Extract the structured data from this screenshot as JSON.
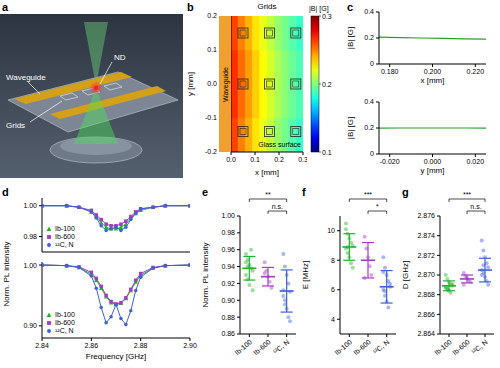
{
  "illustration": {
    "panel": "a",
    "labels": {
      "nd": "ND",
      "waveguide": "Waveguide",
      "grids": "Grids"
    }
  },
  "chart_data": [
    {
      "panel": "b",
      "type": "heatmap",
      "x_label": "x [mm]",
      "y_label": "y [mm]",
      "xlim": [
        0,
        0.3
      ],
      "xticks": [
        {
          "value": 0,
          "label": "0.0"
        },
        0.1,
        0.2,
        0.3
      ],
      "ylim": [
        -0.2,
        0.2
      ],
      "yticks": [
        -0.2,
        -0.1,
        {
          "value": 0,
          "label": "0.0"
        },
        0.1,
        0.2
      ],
      "x": [
        0.015,
        0.045,
        0.075,
        0.105,
        0.135,
        0.165,
        0.195,
        0.225,
        0.255,
        0.285
      ],
      "y": [
        -0.15,
        -0.05,
        0.05,
        0.15
      ],
      "cells": [
        [
          0.262,
          0.25,
          0.24,
          0.23,
          0.221,
          0.213,
          0.205,
          0.198,
          0.192,
          0.186
        ],
        [
          0.266,
          0.254,
          0.244,
          0.234,
          0.225,
          0.217,
          0.209,
          0.202,
          0.196,
          0.19
        ],
        [
          0.266,
          0.254,
          0.244,
          0.234,
          0.225,
          0.217,
          0.209,
          0.202,
          0.196,
          0.19
        ],
        [
          0.262,
          0.25,
          0.24,
          0.23,
          0.221,
          0.213,
          0.205,
          0.198,
          0.192,
          0.186
        ]
      ],
      "colorbar": {
        "label": "|B| [G]",
        "range": [
          0.1,
          0.3
        ],
        "ticks": [
          0.1,
          0.2,
          0.3
        ]
      },
      "grids": {
        "x": [
          0.05,
          0.16,
          0.27
        ],
        "y": [
          -0.14,
          0,
          0.15
        ]
      },
      "annotations": {
        "waveguide": "Waveguide",
        "grids": "Grids",
        "surface": "Glass surface"
      }
    },
    {
      "panel": "c",
      "type": "line",
      "color": "#2ca02c",
      "subplots": [
        {
          "x_label": "x [mm]",
          "y_label": "|B| [G]",
          "x": [
            0.175,
            0.185,
            0.195,
            0.205,
            0.215,
            0.225
          ],
          "values": [
            0.206,
            0.203,
            0.2,
            0.197,
            0.194,
            0.191
          ],
          "xlim": [
            0.175,
            0.225
          ],
          "xticks": [
            {
              "value": 0.18,
              "label": "0.180"
            },
            {
              "value": 0.2,
              "label": "0.200"
            },
            {
              "value": 0.22,
              "label": "0.220"
            }
          ],
          "ylim": [
            0,
            0.4
          ],
          "yticks": [
            0,
            0.2,
            0.4
          ]
        },
        {
          "x_label": "y [mm]",
          "y_label": "|B| [G]",
          "x": [
            -0.025,
            -0.015,
            -0.005,
            0.005,
            0.015,
            0.025
          ],
          "values": [
            0.199,
            0.2,
            0.2,
            0.2,
            0.2,
            0.199
          ],
          "xlim": [
            -0.025,
            0.025
          ],
          "xticks": [
            {
              "value": -0.02,
              "label": "-0.020"
            },
            {
              "value": 0,
              "label": "0.000"
            },
            {
              "value": 0.02,
              "label": "0.020"
            }
          ],
          "ylim": [
            0,
            0.4
          ],
          "yticks": [
            0,
            0.2,
            0.4
          ]
        }
      ]
    },
    {
      "panel": "d",
      "type": "line",
      "x_label": "Frequency [GHz]",
      "y_label": "Norm. PL intensity",
      "legend": "lower left",
      "xlim": [
        2.84,
        2.9
      ],
      "xticks": [
        2.84,
        2.86,
        2.88,
        {
          "value": 2.9,
          "label": "2.90"
        }
      ],
      "x": [
        2.84,
        2.85,
        2.855,
        2.86,
        2.862,
        2.864,
        2.866,
        2.868,
        2.87,
        2.872,
        2.874,
        2.876,
        2.878,
        2.88,
        2.885,
        2.89,
        2.9
      ],
      "subplots": [
        {
          "tick_labels": "y",
          "ylim": [
            0.97,
            1.005
          ],
          "yticks": [
            0.98,
            {
              "value": 1,
              "label": "1.00"
            }
          ],
          "series": [
            {
              "name": "Ib-100",
              "color": "#22b22a",
              "marker": "triangle",
              "values": [
                1.0,
                1.0,
                0.999,
                0.996,
                0.993,
                0.989,
                0.986,
                0.985,
                0.985,
                0.986,
                0.988,
                0.992,
                0.995,
                0.997,
                0.999,
                1.0,
                1.0
              ]
            },
            {
              "name": "Ib-600",
              "color": "#a23cc4",
              "marker": "square",
              "values": [
                1.0,
                1.0,
                0.999,
                0.997,
                0.994,
                0.991,
                0.988,
                0.987,
                0.987,
                0.988,
                0.99,
                0.993,
                0.996,
                0.998,
                0.999,
                1.0,
                1.0
              ]
            },
            {
              "name": "¹²C, N",
              "color": "#3f5fd8",
              "marker": "circle",
              "values": [
                1.0,
                1.0,
                0.999,
                0.996,
                0.992,
                0.987,
                0.984,
                0.985,
                0.986,
                0.984,
                0.986,
                0.991,
                0.995,
                0.998,
                0.999,
                1.0,
                1.0
              ]
            }
          ]
        },
        {
          "ylim": [
            0.88,
            1.005
          ],
          "yticks": [
            {
              "value": 0.9,
              "label": "0.90"
            },
            {
              "value": 1,
              "label": "1.00"
            }
          ],
          "series": [
            {
              "name": "Ib-100",
              "color": "#22b22a",
              "marker": "triangle",
              "values": [
                1.0,
                0.999,
                0.996,
                0.985,
                0.975,
                0.962,
                0.948,
                0.938,
                0.935,
                0.937,
                0.945,
                0.958,
                0.972,
                0.983,
                0.995,
                0.999,
                1.0
              ]
            },
            {
              "name": "Ib-600",
              "color": "#a23cc4",
              "marker": "square",
              "values": [
                1.0,
                0.999,
                0.997,
                0.988,
                0.978,
                0.965,
                0.95,
                0.94,
                0.936,
                0.938,
                0.946,
                0.96,
                0.975,
                0.986,
                0.996,
                0.999,
                1.0
              ]
            },
            {
              "name": "¹²C, N",
              "color": "#3f5fd8",
              "marker": "circle",
              "values": [
                1.0,
                0.999,
                0.996,
                0.982,
                0.962,
                0.93,
                0.905,
                0.915,
                0.935,
                0.912,
                0.902,
                0.925,
                0.958,
                0.98,
                0.995,
                0.999,
                1.0
              ]
            }
          ]
        }
      ]
    },
    {
      "panel": "e",
      "type": "scatter",
      "y_label": "Norm. PL intensity",
      "categories": [
        "Ib-100",
        "Ib-600",
        "¹²C, N"
      ],
      "colors": [
        "#22b22a",
        "#a23cc4",
        "#3f5fd8"
      ],
      "ylim": [
        0.86,
        1.0
      ],
      "yticks": [
        0.86,
        0.88,
        {
          "value": 0.9,
          "label": "0.90"
        },
        0.92,
        0.94,
        0.96,
        0.98,
        {
          "value": 1,
          "label": "1.00"
        }
      ],
      "points": [
        [
          0.955,
          0.948,
          0.942,
          0.938,
          0.935,
          0.93,
          0.925,
          0.918,
          0.96,
          0.912,
          0.945,
          0.94
        ],
        [
          0.945,
          0.935,
          0.928,
          0.922,
          0.915,
          0.932
        ],
        [
          0.955,
          0.94,
          0.93,
          0.92,
          0.91,
          0.905,
          0.895,
          0.89,
          0.88,
          0.875,
          0.912,
          0.9
        ]
      ],
      "mean": [
        0.938,
        0.928,
        0.911
      ],
      "sd": [
        0.014,
        0.011,
        0.025
      ],
      "significance": [
        {
          "pair": [
            "Ib-100",
            "¹²C, N"
          ],
          "label": "**"
        },
        {
          "pair": [
            "Ib-600",
            "¹²C, N"
          ],
          "label": "n.s."
        }
      ]
    },
    {
      "panel": "f",
      "type": "scatter",
      "y_label": "E [MHz]",
      "categories": [
        "Ib-100",
        "Ib-600",
        "¹²C, N"
      ],
      "colors": [
        "#22b22a",
        "#a23cc4",
        "#3f5fd8"
      ],
      "ylim": [
        3,
        11
      ],
      "yticks": [
        4,
        6,
        8,
        10
      ],
      "points": [
        [
          10.5,
          9.8,
          9.5,
          9.2,
          9.0,
          8.8,
          8.5,
          8.2,
          7.8,
          7.5,
          10.1,
          8.9
        ],
        [
          9.6,
          8.8,
          8.2,
          7.6,
          7.0,
          6.8
        ],
        [
          8.2,
          7.5,
          7.0,
          6.6,
          6.2,
          6.0,
          5.6,
          5.2,
          4.8,
          6.4,
          7.2,
          5.9
        ]
      ],
      "mean": [
        8.9,
        8.0,
        6.2
      ],
      "sd": [
        0.9,
        1.2,
        1.1
      ],
      "significance": [
        {
          "pair": [
            "Ib-100",
            "¹²C, N"
          ],
          "label": "***"
        },
        {
          "pair": [
            "Ib-600",
            "¹²C, N"
          ],
          "label": "*"
        }
      ]
    },
    {
      "panel": "g",
      "type": "scatter",
      "y_label": "D [GHz]",
      "categories": [
        "Ib-100",
        "Ib-600",
        "¹²C, N"
      ],
      "colors": [
        "#22b22a",
        "#a23cc4",
        "#3f5fd8"
      ],
      "ylim": [
        2.864,
        2.876
      ],
      "yticks": [
        2.864,
        2.866,
        2.868,
        {
          "value": 2.87,
          "label": "2.870"
        },
        2.872,
        2.874,
        2.876
      ],
      "points": [
        [
          2.87,
          2.8696,
          2.8693,
          2.869,
          2.8689,
          2.8688,
          2.8686,
          2.8684,
          2.8682,
          2.8691,
          2.8687,
          2.8685
        ],
        [
          2.8702,
          2.8699,
          2.8697,
          2.8695,
          2.8693,
          2.869
        ],
        [
          2.8735,
          2.8725,
          2.8718,
          2.8712,
          2.8708,
          2.8705,
          2.8702,
          2.8698,
          2.8694,
          2.869,
          2.87,
          2.871
        ]
      ],
      "mean": [
        2.8689,
        2.8696,
        2.8705
      ],
      "sd": [
        0.0005,
        0.0004,
        0.0012
      ],
      "significance": [
        {
          "pair": [
            "Ib-100",
            "¹²C, N"
          ],
          "label": "***"
        },
        {
          "pair": [
            "Ib-600",
            "¹²C, N"
          ],
          "label": "n.s."
        }
      ]
    }
  ]
}
